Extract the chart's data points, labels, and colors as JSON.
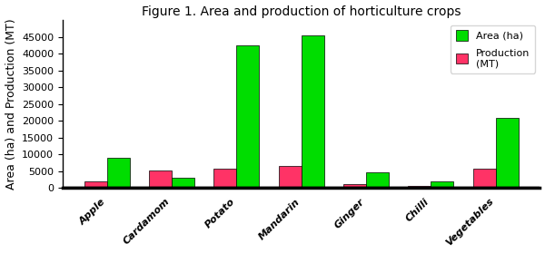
{
  "title": "Figure 1. Area and production of horticulture crops",
  "ylabel": "Area (ha) and Production (MT)",
  "categories": [
    "Apple",
    "Cardamom",
    "Potato",
    "Mandarin",
    "Ginger",
    "Chilli",
    "Vegetables"
  ],
  "area_values": [
    9000,
    3000,
    42500,
    45500,
    4700,
    2000,
    21000
  ],
  "production_values": [
    2000,
    5300,
    5700,
    6500,
    1300,
    700,
    5700
  ],
  "area_color": "#00dd00",
  "production_color": "#ff3366",
  "ylim": [
    0,
    50000
  ],
  "yticks": [
    0,
    5000,
    10000,
    15000,
    20000,
    25000,
    30000,
    35000,
    40000,
    45000
  ],
  "legend_area": "Area (ha)",
  "legend_production": "Production\n(MT)",
  "bar_width": 0.35,
  "background_color": "#ffffff",
  "title_fontsize": 10,
  "tick_fontsize": 8,
  "ylabel_fontsize": 9,
  "legend_fontsize": 8
}
